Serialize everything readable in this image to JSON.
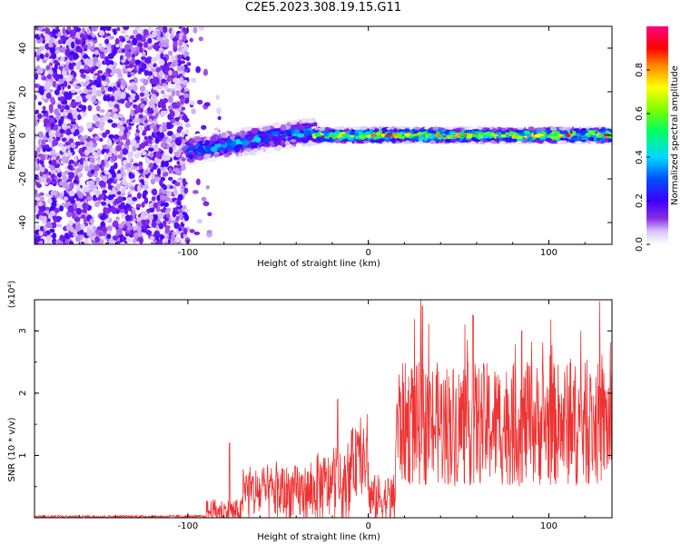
{
  "title": "C2E5.2023.308.19.15.G11",
  "chart_data": [
    {
      "type": "heatmap",
      "xlabel": "Height of straight line (km)",
      "ylabel": "Frequency (Hz)",
      "xlim": [
        -185,
        135
      ],
      "ylim": [
        -50,
        50
      ],
      "x_ticks": [
        "-100",
        "0",
        "100"
      ],
      "y_ticks": [
        "40",
        "20",
        "0",
        "-20",
        "-40"
      ],
      "colorbar": {
        "label": "Normalized spectral amplitude",
        "range": [
          0,
          1
        ],
        "ticks": [
          "0.0",
          "0.2",
          "0.4",
          "0.6",
          "0.8"
        ],
        "colors": [
          "#ffffff",
          "#d8c4f8",
          "#8a2be2",
          "#3c00ff",
          "#0050ff",
          "#00d8ff",
          "#00ff60",
          "#7fff00",
          "#ffff00",
          "#ff8800",
          "#ff0000",
          "#ff0080"
        ]
      },
      "regions": [
        {
          "x_range": [
            -185,
            -100
          ],
          "freq_range": [
            -50,
            50
          ],
          "amplitude": "0.0-0.15",
          "note": "scattered noise"
        },
        {
          "x_range": [
            -100,
            -30
          ],
          "freq_center": [
            -7,
            2
          ],
          "freq_spread": 6,
          "amplitude": "0.1-0.5"
        },
        {
          "x_range": [
            -30,
            135
          ],
          "freq_center": 0,
          "freq_spread": 3,
          "amplitude": "0.3-1.0"
        }
      ]
    },
    {
      "type": "line",
      "xlabel": "Height of straight line (km)",
      "ylabel": "SNR (10 * v/v)",
      "y_multiplier": "(x10⁴)",
      "xlim": [
        -185,
        135
      ],
      "ylim": [
        0,
        3.5
      ],
      "x_ticks": [
        "-100",
        "0",
        "100"
      ],
      "y_ticks": [
        "1",
        "2",
        "3"
      ],
      "color": "#ee3333",
      "segments": [
        {
          "x_range": [
            -185,
            -90
          ],
          "level": 0.02,
          "spread": 0.02
        },
        {
          "x_range": [
            -90,
            -70
          ],
          "level": 0.1,
          "spread": 0.2
        },
        {
          "x_range": [
            -70,
            -30
          ],
          "level": 0.4,
          "spread": 0.45
        },
        {
          "x_range": [
            -30,
            -10
          ],
          "level": 0.5,
          "spread": 0.55
        },
        {
          "x_range": [
            -10,
            0
          ],
          "level": 0.9,
          "spread": 0.55
        },
        {
          "x_range": [
            0,
            15
          ],
          "level": 0.3,
          "spread": 0.4
        },
        {
          "x_range": [
            15,
            135
          ],
          "level": 1.5,
          "spread": 1.0
        }
      ],
      "peaks": [
        {
          "x": -77,
          "y": 1.2
        },
        {
          "x": -17,
          "y": 1.9
        },
        {
          "x": 30,
          "y": 3.4
        },
        {
          "x": 58,
          "y": 3.25
        },
        {
          "x": 85,
          "y": 3.0
        }
      ]
    }
  ]
}
